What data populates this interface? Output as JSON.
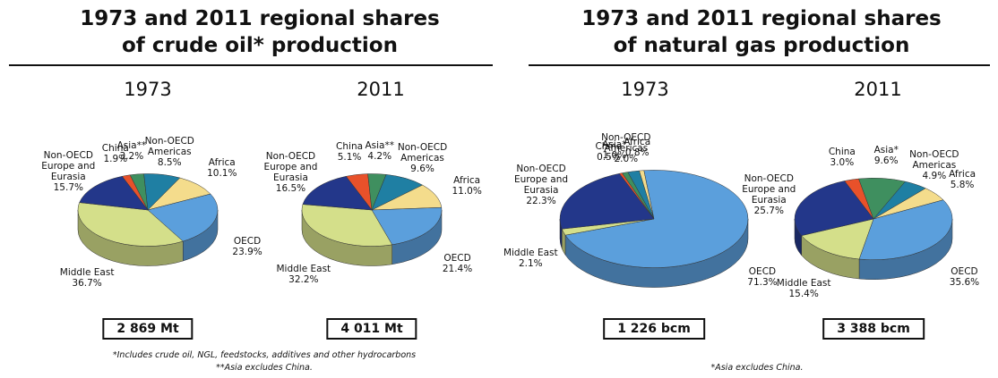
{
  "panels": [
    {
      "title": "1973 and 2011 regional shares of crude oil* production",
      "footnotes": [
        "*Includes crude oil, NGL, feedstocks, additives and other hydrocarbons",
        "**Asia excludes China."
      ]
    },
    {
      "title": "1973 and 2011 regional shares of natural gas production",
      "footnotes": [
        "*Asia excludes China."
      ]
    }
  ],
  "chart_data": [
    {
      "type": "pie",
      "title": "1973",
      "total": "2 869 Mt",
      "categories": [
        "China",
        "Asia**",
        "Non-OECD Americas",
        "Africa",
        "OECD",
        "Middle East",
        "Non-OECD Europe and Eurasia"
      ],
      "values": [
        1.9,
        3.2,
        8.5,
        10.1,
        23.9,
        36.7,
        15.7
      ],
      "value_labels": [
        "1.9%",
        "3.2%",
        "8.5%",
        "10.1%",
        "23.9%",
        "36.7%",
        "15.7%"
      ],
      "colors": [
        "#e8512a",
        "#3f8f5f",
        "#1f7fa3",
        "#f4dc8c",
        "#5b9fdc",
        "#d4df8a",
        "#23378a"
      ]
    },
    {
      "type": "pie",
      "title": "2011",
      "total": "4 011 Mt",
      "categories": [
        "China",
        "Asia**",
        "Non-OECD Americas",
        "Africa",
        "OECD",
        "Middle East",
        "Non-OECD Europe and Eurasia"
      ],
      "values": [
        5.1,
        4.2,
        9.6,
        11.0,
        21.4,
        32.2,
        16.5
      ],
      "value_labels": [
        "5.1%",
        "4.2%",
        "9.6%",
        "11.0%",
        "21.4%",
        "32.2%",
        "16.5%"
      ],
      "colors": [
        "#e8512a",
        "#3f8f5f",
        "#1f7fa3",
        "#f4dc8c",
        "#5b9fdc",
        "#d4df8a",
        "#23378a"
      ]
    },
    {
      "type": "pie",
      "title": "1973",
      "total": "1 226 bcm",
      "categories": [
        "China",
        "Asia*",
        "Non-OECD Americas",
        "Africa",
        "OECD",
        "Middle East",
        "Non-OECD Europe and Eurasia"
      ],
      "values": [
        0.5,
        1.0,
        2.0,
        0.8,
        71.3,
        2.1,
        22.3
      ],
      "value_labels": [
        "0.5%",
        "1.0%",
        "2.0%",
        "0.8%",
        "71.3%",
        "2.1%",
        "22.3%"
      ],
      "colors": [
        "#e8512a",
        "#3f8f5f",
        "#1f7fa3",
        "#f4dc8c",
        "#5b9fdc",
        "#d4df8a",
        "#23378a"
      ]
    },
    {
      "type": "pie",
      "title": "2011",
      "total": "3 388 bcm",
      "categories": [
        "China",
        "Asia*",
        "Non-OECD Americas",
        "Africa",
        "OECD",
        "Middle East",
        "Non-OECD Europe and Eurasia"
      ],
      "values": [
        3.0,
        9.6,
        4.9,
        5.8,
        35.6,
        15.4,
        25.7
      ],
      "value_labels": [
        "3.0%",
        "9.6%",
        "4.9%",
        "5.8%",
        "35.6%",
        "15.4%",
        "25.7%"
      ],
      "colors": [
        "#e8512a",
        "#3f8f5f",
        "#1f7fa3",
        "#f4dc8c",
        "#5b9fdc",
        "#d4df8a",
        "#23378a"
      ]
    }
  ]
}
